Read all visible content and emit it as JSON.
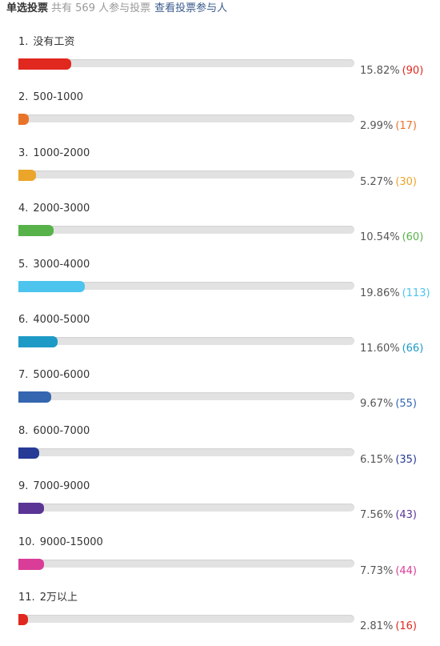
{
  "header": {
    "type_label": "单选投票",
    "stats_text": "共有 569 人参与投票",
    "view_link": "查看投票参与人"
  },
  "options": [
    {
      "index": "1.",
      "label": "没有工资",
      "percent_text": "15.82%",
      "count_text": "(90)",
      "fraction": 0.1582,
      "color": "#e0281f"
    },
    {
      "index": "2.",
      "label": "500-1000",
      "percent_text": "2.99%",
      "count_text": "(17)",
      "fraction": 0.0299,
      "color": "#e8742a"
    },
    {
      "index": "3.",
      "label": "1000-2000",
      "percent_text": "5.27%",
      "count_text": "(30)",
      "fraction": 0.0527,
      "color": "#eaa52a"
    },
    {
      "index": "4.",
      "label": "2000-3000",
      "percent_text": "10.54%",
      "count_text": "(60)",
      "fraction": 0.1054,
      "color": "#58b24a"
    },
    {
      "index": "5.",
      "label": "3000-4000",
      "percent_text": "19.86%",
      "count_text": "(113)",
      "fraction": 0.1986,
      "color": "#4cc4ee"
    },
    {
      "index": "6.",
      "label": "4000-5000",
      "percent_text": "11.60%",
      "count_text": "(66)",
      "fraction": 0.116,
      "color": "#1d9ac6"
    },
    {
      "index": "7.",
      "label": "5000-6000",
      "percent_text": "9.67%",
      "count_text": "(55)",
      "fraction": 0.0967,
      "color": "#3566b0"
    },
    {
      "index": "8.",
      "label": "6000-7000",
      "percent_text": "6.15%",
      "count_text": "(35)",
      "fraction": 0.0615,
      "color": "#263a96"
    },
    {
      "index": "9.",
      "label": "7000-9000",
      "percent_text": "7.56%",
      "count_text": "(43)",
      "fraction": 0.0756,
      "color": "#5a3596"
    },
    {
      "index": "10.",
      "label": "9000-15000",
      "percent_text": "7.73%",
      "count_text": "(44)",
      "fraction": 0.0773,
      "color": "#d93d97"
    },
    {
      "index": "11.",
      "label": "2万以上",
      "percent_text": "2.81%",
      "count_text": "(16)",
      "fraction": 0.0281,
      "color": "#e0281f"
    }
  ]
}
